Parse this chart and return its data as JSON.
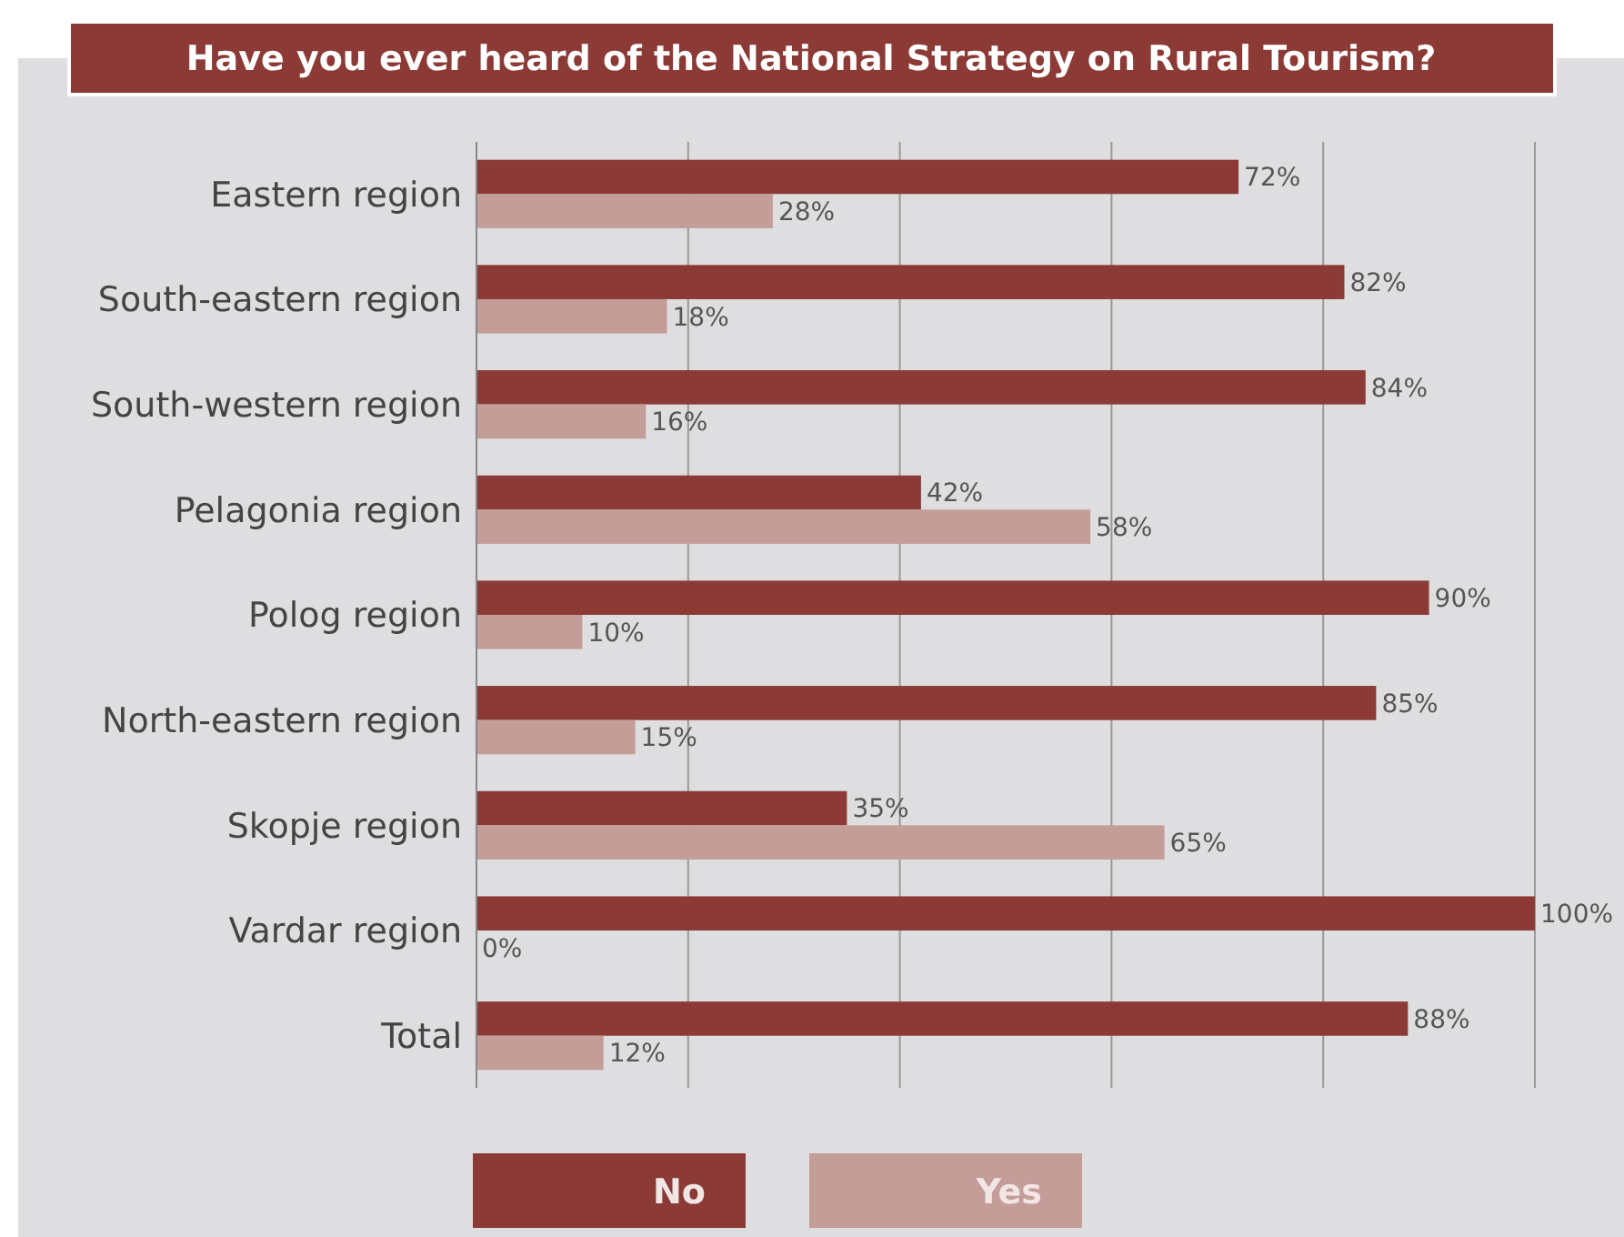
{
  "chart_data": {
    "type": "bar",
    "orientation": "horizontal",
    "title": "Have you ever heard of the National Strategy on Rural Tourism?",
    "categories": [
      "Eastern region",
      "South-eastern region",
      "South-western region",
      "Pelagonia region",
      "Polog region",
      "North-eastern region",
      "Skopje region",
      "Vardar region",
      "Total"
    ],
    "series": [
      {
        "name": "No",
        "color": "#8b3a36",
        "values": [
          72,
          82,
          84,
          42,
          90,
          85,
          35,
          100,
          88
        ],
        "value_labels": [
          "72%",
          "82%",
          "84%",
          "42%",
          "90%",
          "85%",
          "35%",
          "100%",
          "88%"
        ]
      },
      {
        "name": "Yes",
        "color": "#c49c98",
        "values": [
          28,
          18,
          16,
          58,
          10,
          15,
          65,
          0,
          12
        ],
        "value_labels": [
          "28%",
          "18%",
          "16%",
          "58%",
          "10%",
          "15%",
          "65%",
          "0%",
          "12%"
        ]
      }
    ],
    "xlim": [
      0,
      100
    ],
    "xticks": [
      {
        "value": 0,
        "label": null
      },
      {
        "value": 20,
        "label": null
      },
      {
        "value": 40,
        "label": null
      },
      {
        "value": 60,
        "label": null
      },
      {
        "value": 80,
        "label": null
      },
      {
        "value": 100,
        "label": null
      }
    ],
    "tick_labels": "y",
    "grid": "x",
    "legend": "bottom"
  }
}
